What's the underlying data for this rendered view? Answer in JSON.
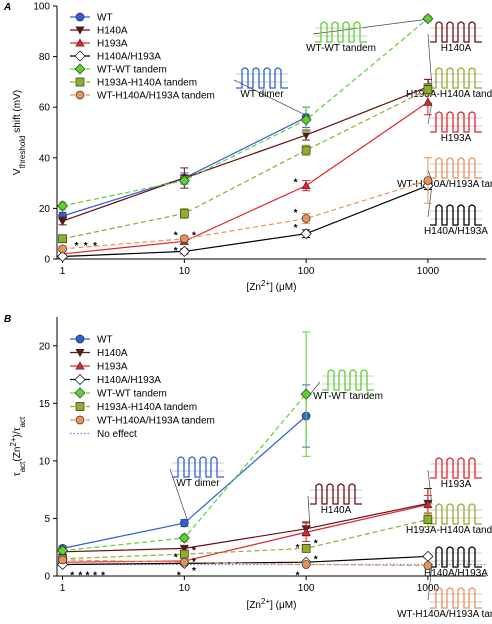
{
  "chart_data": [
    {
      "type": "line",
      "panel_label": "A",
      "x_label": [
        {
          "text": "[Zn"
        },
        {
          "text": "2+",
          "sup": true
        },
        {
          "text": "] (μM)"
        }
      ],
      "y_label": [
        {
          "text": "V"
        },
        {
          "text": "threshold",
          "sub": true
        },
        {
          "text": " shift (mV)"
        }
      ],
      "x": [
        1,
        10,
        100,
        1000
      ],
      "xlim": [
        0.9,
        3000
      ],
      "xticks": [
        1,
        10,
        100,
        1000
      ],
      "xscale": "log",
      "ylim": [
        0,
        100
      ],
      "yticks": [
        0,
        20,
        40,
        60,
        80,
        100
      ],
      "series": [
        {
          "name": "WT",
          "color": "#2e5fd6",
          "marker": "circle",
          "dashed": false,
          "open": false,
          "values": [
            17,
            32,
            56,
            null
          ],
          "errors": [
            1.5,
            2,
            4,
            null
          ]
        },
        {
          "name": "H140A",
          "color": "#6b0f0f",
          "marker": "tri-down",
          "dashed": false,
          "open": false,
          "values": [
            15,
            32,
            49,
            68
          ],
          "errors": [
            1.5,
            4,
            2,
            3
          ]
        },
        {
          "name": "H193A",
          "color": "#e8202a",
          "marker": "tri-up",
          "dashed": false,
          "open": false,
          "values": [
            2,
            7,
            29,
            62
          ],
          "errors": [
            1,
            1,
            2,
            5
          ]
        },
        {
          "name": "H140A/H193A",
          "color": "#000000",
          "marker": "diamond",
          "dashed": false,
          "open": true,
          "values": [
            1,
            3,
            10,
            29
          ],
          "errors": [
            0.5,
            1,
            1.5,
            1.5
          ]
        },
        {
          "name": "WT-WT tandem",
          "color": "#5bd22e",
          "marker": "diamond",
          "dashed": true,
          "open": false,
          "values": [
            21,
            31,
            55,
            95
          ],
          "errors": [
            1.5,
            1.5,
            5,
            1
          ]
        },
        {
          "name": "H193A-H140A tandem",
          "color": "#8fae2a",
          "marker": "square",
          "dashed": true,
          "open": false,
          "values": [
            8,
            18,
            43,
            67
          ],
          "errors": [
            1,
            2,
            2,
            2
          ]
        },
        {
          "name": "WT-H140A/H193A tandem",
          "color": "#e8935a",
          "marker": "circle",
          "dashed": true,
          "open": false,
          "values": [
            4,
            8,
            16,
            31
          ],
          "errors": [
            1,
            1,
            2,
            9
          ]
        }
      ],
      "annotations": [
        {
          "text": "*",
          "color": "#000000",
          "x": 1.3,
          "y": 6
        },
        {
          "text": "*",
          "color": "#e8202a",
          "x": 1.55,
          "y": 6
        },
        {
          "text": "*",
          "color": "#e8935a",
          "x": 1.85,
          "y": 6
        },
        {
          "text": "*",
          "color": "#000000",
          "x": 8.5,
          "y": 4
        },
        {
          "text": "*",
          "color": "#e8935a",
          "x": 8.5,
          "y": 10
        },
        {
          "text": "*",
          "color": "#e8202a",
          "x": 12,
          "y": 10
        },
        {
          "text": "*",
          "color": "#e8202a",
          "x": 82,
          "y": 31
        },
        {
          "text": "*",
          "color": "#e8935a",
          "x": 82,
          "y": 19
        },
        {
          "text": "*",
          "color": "#000000",
          "x": 82,
          "y": 13
        }
      ],
      "insets": [
        {
          "label": "WT-WT tandem",
          "color": "#5bd22e"
        },
        {
          "label": "H140A",
          "color": "#6b0f0f"
        },
        {
          "label": "WT dimer",
          "color": "#2e5fd6"
        },
        {
          "label": "H193A-H140A tandem",
          "color": "#8fae2a"
        },
        {
          "label": "H193A",
          "color": "#e8202a"
        },
        {
          "label": "WT-H140A/H193A tandem",
          "color": "#e8935a"
        },
        {
          "label": "H140A/H193A",
          "color": "#000000"
        }
      ]
    },
    {
      "type": "line",
      "panel_label": "B",
      "x_label": [
        {
          "text": "[Zn"
        },
        {
          "text": "2+",
          "sup": true
        },
        {
          "text": "] (μM)"
        }
      ],
      "y_label": [
        {
          "text": "τ"
        },
        {
          "text": "act",
          "sub": true
        },
        {
          "text": "(Zn"
        },
        {
          "text": "2+",
          "sup": true
        },
        {
          "text": ")/τ"
        },
        {
          "text": "act",
          "sub": true
        }
      ],
      "x": [
        1,
        10,
        100,
        1000
      ],
      "xlim": [
        0.9,
        3000
      ],
      "xticks": [
        1,
        10,
        100,
        1000
      ],
      "xscale": "log",
      "ylim": [
        0,
        22.5
      ],
      "yticks": [
        0,
        5,
        10,
        15,
        20
      ],
      "series": [
        {
          "name": "WT",
          "color": "#2e5fd6",
          "marker": "circle",
          "dashed": false,
          "open": false,
          "values": [
            2.4,
            4.6,
            13.9,
            null
          ],
          "errors": [
            0.2,
            0.3,
            2.7,
            null
          ]
        },
        {
          "name": "H140A",
          "color": "#6b0f0f",
          "marker": "tri-down",
          "dashed": false,
          "open": false,
          "values": [
            2.1,
            2.4,
            4.1,
            6.3
          ],
          "errors": [
            0.2,
            0.2,
            0.6,
            1.3
          ]
        },
        {
          "name": "H193A",
          "color": "#e8202a",
          "marker": "tri-up",
          "dashed": false,
          "open": false,
          "values": [
            1.2,
            1.3,
            3.8,
            6.2
          ],
          "errors": [
            0.1,
            0.1,
            0.8,
            0.8
          ]
        },
        {
          "name": "H140A/H193A",
          "color": "#000000",
          "marker": "diamond",
          "dashed": false,
          "open": true,
          "values": [
            1.0,
            1.1,
            1.2,
            1.7
          ],
          "errors": [
            0.1,
            0.1,
            0.1,
            0.1
          ]
        },
        {
          "name": "WT-WT tandem",
          "color": "#5bd22e",
          "marker": "diamond",
          "dashed": true,
          "open": false,
          "values": [
            2.2,
            3.3,
            15.8,
            null
          ],
          "errors": [
            0.2,
            0.3,
            5.4,
            null
          ]
        },
        {
          "name": "H193A-H140A tandem",
          "color": "#8fae2a",
          "marker": "square",
          "dashed": true,
          "open": false,
          "values": [
            1.5,
            1.9,
            2.4,
            4.9
          ],
          "errors": [
            0.1,
            0.2,
            0.3,
            0.6
          ]
        },
        {
          "name": "WT-H140A/H193A tandem",
          "color": "#e8935a",
          "marker": "circle",
          "dashed": true,
          "open": false,
          "values": [
            1.4,
            1.2,
            1.0,
            0.9
          ],
          "errors": [
            0.1,
            0.1,
            0.1,
            0.1
          ]
        }
      ],
      "reference_line": {
        "name": "No effect",
        "value": 1,
        "color": "#5a8fd8"
      },
      "annotations": [
        {
          "text": "*",
          "color": "#000000",
          "x": 1.2,
          "y": 0.2
        },
        {
          "text": "*",
          "color": "#e8202a",
          "x": 1.4,
          "y": 0.2
        },
        {
          "text": "*",
          "color": "#5bd22e",
          "x": 1.6,
          "y": 0.2
        },
        {
          "text": "*",
          "color": "#e8935a",
          "x": 1.85,
          "y": 0.2
        },
        {
          "text": "*",
          "color": "#e8935a",
          "x": 2.15,
          "y": 0.2
        },
        {
          "text": "*",
          "color": "#000000",
          "x": 9,
          "y": 0.2
        },
        {
          "text": "*",
          "color": "#6b0f0f",
          "x": 12,
          "y": 2.4
        },
        {
          "text": "*",
          "color": "#8fae2a",
          "x": 8.5,
          "y": 1.8
        },
        {
          "text": "*",
          "color": "#e8202a",
          "x": 12,
          "y": 1.4
        },
        {
          "text": "*",
          "color": "#e8935a",
          "x": 12,
          "y": 0.6
        },
        {
          "text": "*",
          "color": "#000000",
          "x": 85,
          "y": 0.2
        },
        {
          "text": "*",
          "color": "#8fae2a",
          "x": 85,
          "y": 2.6
        },
        {
          "text": "*",
          "color": "#e8202a",
          "x": 120,
          "y": 3.0
        },
        {
          "text": "*",
          "color": "#e8935a",
          "x": 120,
          "y": 1.6
        }
      ],
      "insets": [
        {
          "label": "WT-WT tandem",
          "color": "#5bd22e"
        },
        {
          "label": "WT dimer",
          "color": "#2e5fd6"
        },
        {
          "label": "H140A",
          "color": "#6b0f0f"
        },
        {
          "label": "H193A",
          "color": "#e8202a"
        },
        {
          "label": "H193A-H140A tandem",
          "color": "#8fae2a"
        },
        {
          "label": "H140A/H193A",
          "color": "#000000"
        },
        {
          "label": "WT-H140A/H193A tandem",
          "color": "#e8935a"
        }
      ]
    }
  ]
}
